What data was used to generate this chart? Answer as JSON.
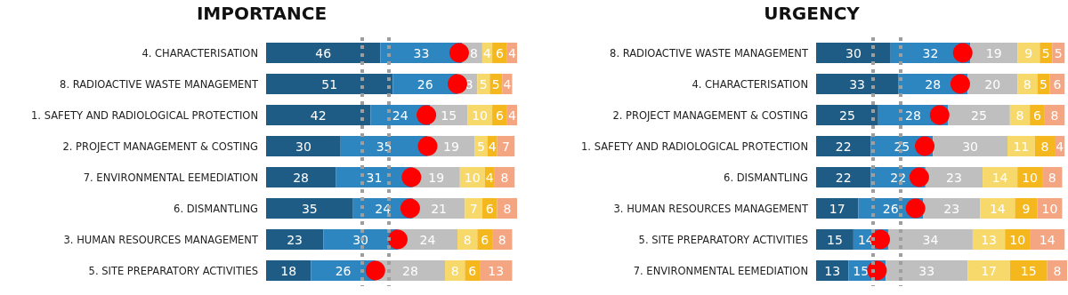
{
  "chart_data": [
    {
      "type": "bar",
      "title": "IMPORTANCE",
      "orientation": "horizontal",
      "stacked": true,
      "data_labels": true,
      "grid": false,
      "tick_labels": "y",
      "xlim": [
        0,
        101
      ],
      "categories": [
        "4. CHARACTERISATION",
        "8. RADIOACTIVE WASTE MANAGEMENT",
        "1. SAFETY AND RADIOLOGICAL PROTECTION",
        "2. PROJECT MANAGEMENT & COSTING",
        "7. ENVIRONMENTAL EEMEDIATION",
        "6. DISMANTLING",
        "3. HUMAN RESOURCES MANAGEMENT",
        "5. SITE PREPARATORY ACTIVITIES"
      ],
      "series": [
        {
          "color": "#1f5c85",
          "values": [
            46,
            51,
            42,
            30,
            28,
            35,
            23,
            18
          ]
        },
        {
          "color": "#2e86c1",
          "values": [
            33,
            26,
            24,
            35,
            31,
            24,
            30,
            26
          ]
        },
        {
          "color": "#bfbfbf",
          "values": [
            8,
            8,
            15,
            19,
            19,
            21,
            24,
            28
          ]
        },
        {
          "color": "#f7d96b",
          "values": [
            4,
            5,
            10,
            5,
            10,
            7,
            8,
            8
          ]
        },
        {
          "color": "#f5b71e",
          "values": [
            6,
            5,
            6,
            4,
            4,
            6,
            6,
            6
          ]
        },
        {
          "color": "#f4a582",
          "values": [
            4,
            4,
            4,
            7,
            8,
            8,
            8,
            13
          ]
        },
        {
          "type": "scatter",
          "marker": "circle",
          "color": "#ff0000",
          "values": [
            77.7,
            77,
            64.5,
            65,
            58.5,
            58,
            53,
            44
          ],
          "value_labels": [
            null,
            null,
            null,
            null,
            null,
            null,
            null,
            null
          ]
        }
      ],
      "ref_lines": [
        {
          "axis": "x",
          "value": 38.7,
          "color": "#9e9e9e",
          "line_style": "dashed"
        },
        {
          "axis": "x",
          "value": 49.4,
          "color": "#9e9e9e",
          "line_style": "dashed"
        }
      ]
    },
    {
      "type": "bar",
      "title": "URGENCY",
      "orientation": "horizontal",
      "stacked": true,
      "data_labels": true,
      "grid": false,
      "tick_labels": "y",
      "xlim": [
        0,
        101
      ],
      "categories": [
        "8. RADIOACTIVE WASTE MANAGEMENT",
        "4. CHARACTERISATION",
        "2. PROJECT MANAGEMENT & COSTING",
        "1. SAFETY AND RADIOLOGICAL PROTECTION",
        "6. DISMANTLING",
        "3. HUMAN RESOURCES MANAGEMENT",
        "5. SITE PREPARATORY ACTIVITIES",
        "7. ENVIRONMENTAL EEMEDIATION"
      ],
      "series": [
        {
          "color": "#1f5c85",
          "values": [
            30,
            33,
            25,
            22,
            22,
            17,
            15,
            13
          ]
        },
        {
          "color": "#2e86c1",
          "values": [
            32,
            28,
            28,
            25,
            22,
            26,
            14,
            15
          ]
        },
        {
          "color": "#bfbfbf",
          "values": [
            19,
            20,
            25,
            30,
            23,
            23,
            34,
            33
          ]
        },
        {
          "color": "#f7d96b",
          "values": [
            9,
            8,
            8,
            11,
            14,
            14,
            13,
            17
          ]
        },
        {
          "color": "#f5b71e",
          "values": [
            5,
            5,
            6,
            8,
            10,
            9,
            10,
            15
          ]
        },
        {
          "color": "#f4a582",
          "values": [
            5,
            6,
            8,
            4,
            8,
            10,
            14,
            8
          ]
        },
        {
          "type": "scatter",
          "marker": "circle",
          "color": "#ff0000",
          "values": [
            59,
            58,
            49.7,
            43.7,
            41.5,
            40,
            25.8,
            24.5
          ],
          "value_labels": [
            null,
            null,
            null,
            null,
            null,
            null,
            null,
            null
          ]
        }
      ],
      "ref_lines": [
        {
          "axis": "x",
          "value": 22.8,
          "color": "#9e9e9e",
          "line_style": "dashed"
        },
        {
          "axis": "x",
          "value": 34,
          "color": "#9e9e9e",
          "line_style": "dashed"
        }
      ]
    }
  ]
}
